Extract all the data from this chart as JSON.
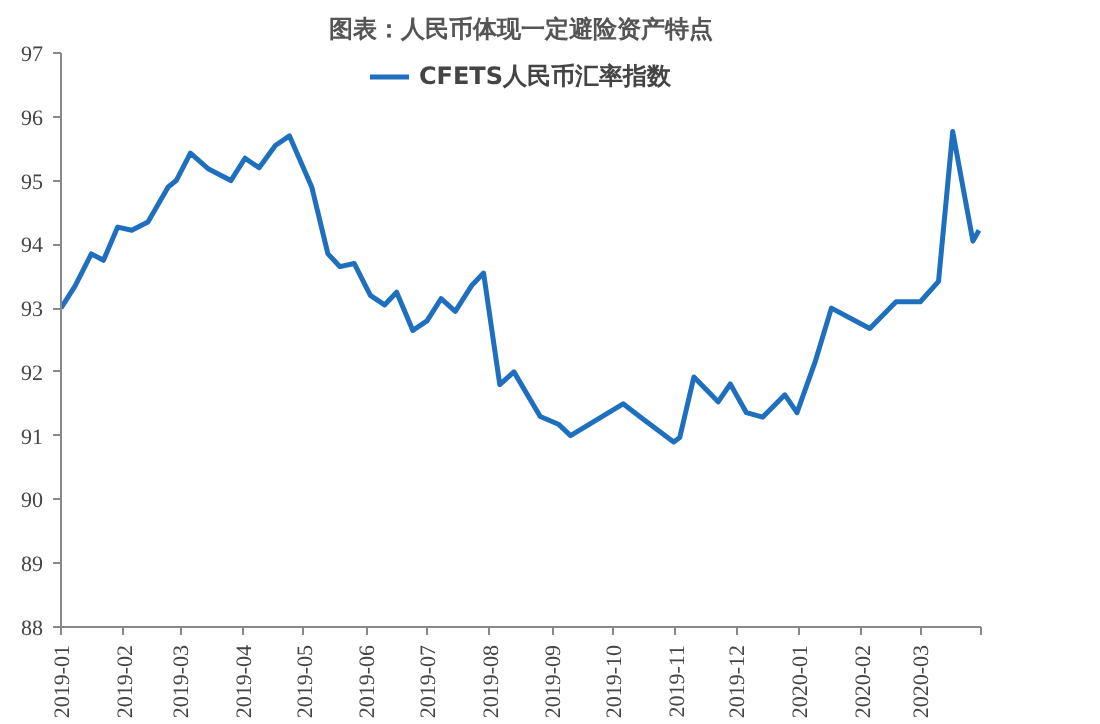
{
  "chart_data": {
    "type": "line",
    "title": "图表：人民币体现一定避险资产特点",
    "x": [
      "2019-01-01",
      "2019-01-08",
      "2019-01-16",
      "2019-01-22",
      "2019-01-29",
      "2019-02-05",
      "2019-02-13",
      "2019-02-23",
      "2019-02-27",
      "2019-03-06",
      "2019-03-15",
      "2019-03-26",
      "2019-04-02",
      "2019-04-09",
      "2019-04-17",
      "2019-04-24",
      "2019-05-05",
      "2019-05-13",
      "2019-05-19",
      "2019-05-26",
      "2019-06-03",
      "2019-06-10",
      "2019-06-16",
      "2019-06-24",
      "2019-07-01",
      "2019-07-08",
      "2019-07-15",
      "2019-07-23",
      "2019-07-29",
      "2019-08-06",
      "2019-08-13",
      "2019-08-26",
      "2019-09-04",
      "2019-09-10",
      "2019-10-06",
      "2019-10-15",
      "2019-10-31",
      "2019-11-03",
      "2019-11-10",
      "2019-11-22",
      "2019-11-28",
      "2019-12-06",
      "2019-12-14",
      "2019-12-25",
      "2019-12-31",
      "2020-01-09",
      "2020-01-17",
      "2020-02-05",
      "2020-02-18",
      "2020-03-01",
      "2020-03-10",
      "2020-03-17",
      "2020-03-27",
      "2020-03-30"
    ],
    "series": [
      {
        "name": "CFETS人民币汇率指数",
        "color": "#1f6fbf",
        "values": [
          93.0,
          93.35,
          93.85,
          93.75,
          94.27,
          94.22,
          94.35,
          94.9,
          95.0,
          95.43,
          95.18,
          95.0,
          95.35,
          95.2,
          95.55,
          95.7,
          94.9,
          93.85,
          93.65,
          93.7,
          93.2,
          93.05,
          93.25,
          92.65,
          92.8,
          93.15,
          92.95,
          93.35,
          93.55,
          91.8,
          92.0,
          91.3,
          91.18,
          91.0,
          91.5,
          91.28,
          90.9,
          90.97,
          91.92,
          91.53,
          91.81,
          91.36,
          91.29,
          91.64,
          91.36,
          92.16,
          93.0,
          92.68,
          93.1,
          93.1,
          93.42,
          95.77,
          94.05,
          94.22
        ]
      }
    ],
    "xlim": [
      "2019-01-01",
      "2020-03-31"
    ],
    "xticks": [
      {
        "value": "2019-01-01",
        "label": "2019-01"
      },
      {
        "value": "2019-02-01",
        "label": "2019-02"
      },
      {
        "value": "2019-03-01",
        "label": "2019-03"
      },
      {
        "value": "2019-04-01",
        "label": "2019-04"
      },
      {
        "value": "2019-05-01",
        "label": "2019-05"
      },
      {
        "value": "2019-06-01",
        "label": "2019-06"
      },
      {
        "value": "2019-07-01",
        "label": "2019-07"
      },
      {
        "value": "2019-08-01",
        "label": "2019-08"
      },
      {
        "value": "2019-09-01",
        "label": "2019-09"
      },
      {
        "value": "2019-10-01",
        "label": "2019-10"
      },
      {
        "value": "2019-11-01",
        "label": "2019-11"
      },
      {
        "value": "2019-12-01",
        "label": "2019-12"
      },
      {
        "value": "2020-01-01",
        "label": "2020-01"
      },
      {
        "value": "2020-02-01",
        "label": "2020-02"
      },
      {
        "value": "2020-03-01",
        "label": "2020-03"
      },
      {
        "value": "2020-03-31",
        "label": null
      }
    ],
    "ylim": [
      88,
      97
    ],
    "yticks": [
      88,
      89,
      90,
      91,
      92,
      93,
      94,
      95,
      96,
      97
    ],
    "grid": false,
    "legend": "top",
    "line_style": "solid"
  }
}
